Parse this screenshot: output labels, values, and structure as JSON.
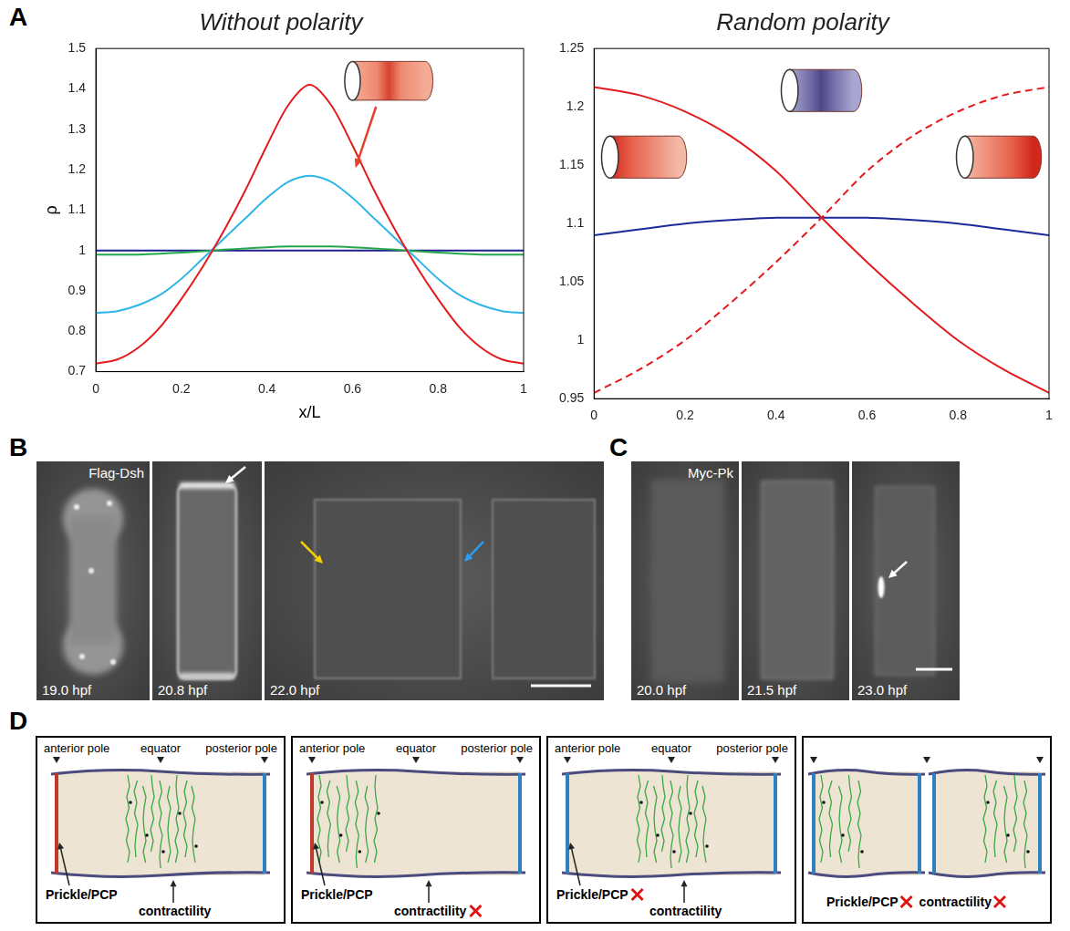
{
  "chart_data": [
    {
      "type": "line",
      "title": "Without polarity",
      "x_label": "x/L",
      "y_label": "ρ",
      "x": [
        0,
        0.05,
        0.1,
        0.15,
        0.2,
        0.25,
        0.3,
        0.35,
        0.4,
        0.45,
        0.5,
        0.55,
        0.6,
        0.65,
        0.7,
        0.75,
        0.8,
        0.85,
        0.9,
        0.95,
        1
      ],
      "series": [
        {
          "color": "#e41a1c",
          "line_style": "solid",
          "values": [
            0.72,
            0.73,
            0.76,
            0.81,
            0.88,
            0.96,
            1.05,
            1.15,
            1.26,
            1.36,
            1.41,
            1.36,
            1.26,
            1.15,
            1.05,
            0.96,
            0.88,
            0.81,
            0.76,
            0.73,
            0.72
          ]
        },
        {
          "color": "#2fb5e8",
          "line_style": "solid",
          "values": [
            0.845,
            0.85,
            0.865,
            0.89,
            0.93,
            0.98,
            1.03,
            1.08,
            1.13,
            1.17,
            1.185,
            1.17,
            1.13,
            1.08,
            1.03,
            0.98,
            0.93,
            0.89,
            0.865,
            0.85,
            0.845
          ]
        },
        {
          "color": "#22a84a",
          "line_style": "solid",
          "values": [
            0.99,
            0.99,
            0.99,
            0.992,
            0.995,
            0.998,
            1.002,
            1.005,
            1.008,
            1.01,
            1.01,
            1.01,
            1.008,
            1.005,
            1.002,
            0.998,
            0.995,
            0.992,
            0.99,
            0.99,
            0.99
          ]
        },
        {
          "color": "#1f1f8f",
          "line_style": "solid",
          "values": [
            1,
            1,
            1,
            1,
            1,
            1,
            1,
            1,
            1,
            1,
            1,
            1,
            1,
            1,
            1,
            1,
            1,
            1,
            1,
            1,
            1
          ]
        }
      ],
      "xlim": [
        0,
        1
      ],
      "xticks": [
        0,
        0.2,
        0.4,
        0.6,
        0.8,
        1
      ],
      "ylim": [
        0.7,
        1.5
      ],
      "yticks": [
        0.7,
        0.8,
        0.9,
        1,
        1.1,
        1.2,
        1.3,
        1.4,
        1.5
      ],
      "grid": false
    },
    {
      "type": "line",
      "title": "Random polarity",
      "x": [
        0,
        0.1,
        0.2,
        0.3,
        0.4,
        0.5,
        0.6,
        0.7,
        0.8,
        0.9,
        1
      ],
      "series": [
        {
          "color": "#e41a1c",
          "line_style": "solid",
          "values": [
            1.217,
            1.21,
            1.196,
            1.175,
            1.145,
            1.105,
            1.067,
            1.032,
            1.0,
            0.975,
            0.955
          ]
        },
        {
          "color": "#e41a1c",
          "line_style": "dashed",
          "values": [
            0.955,
            0.975,
            1.0,
            1.032,
            1.067,
            1.105,
            1.145,
            1.175,
            1.196,
            1.21,
            1.217
          ]
        },
        {
          "color": "#1a2a9a",
          "line_style": "solid",
          "values": [
            1.09,
            1.095,
            1.1,
            1.103,
            1.105,
            1.105,
            1.105,
            1.103,
            1.1,
            1.095,
            1.09
          ]
        }
      ],
      "xlim": [
        0,
        1
      ],
      "xticks": [
        0,
        0.2,
        0.4,
        0.6,
        0.8,
        1
      ],
      "ylim": [
        0.95,
        1.25
      ],
      "yticks": [
        0.95,
        1,
        1.05,
        1.1,
        1.15,
        1.2,
        1.25
      ],
      "grid": false
    }
  ],
  "panel_A": {
    "label": "A"
  },
  "panel_B": {
    "label": "B",
    "stain": "Flag-Dsh",
    "times": [
      "19.0 hpf",
      "20.8 hpf",
      "22.0 hpf"
    ]
  },
  "panel_C": {
    "label": "C",
    "stain": "Myc-Pk",
    "times": [
      "20.0 hpf",
      "21.5 hpf",
      "23.0 hpf"
    ]
  },
  "panel_D": {
    "label": "D",
    "boxes": [
      {
        "top_labels": [
          "anterior pole",
          "equator",
          "posterior pole"
        ],
        "bottom_labels": [
          {
            "text": "Prickle/PCP",
            "crossed": false
          },
          {
            "text": "contractility",
            "crossed": false
          }
        ]
      },
      {
        "top_labels": [
          "anterior pole",
          "equator",
          "posterior pole"
        ],
        "bottom_labels": [
          {
            "text": "Prickle/PCP",
            "crossed": false
          },
          {
            "text": "contractility",
            "crossed": true
          }
        ]
      },
      {
        "top_labels": [
          "anterior pole",
          "equator",
          "posterior pole"
        ],
        "bottom_labels": [
          {
            "text": "Prickle/PCP",
            "crossed": true
          },
          {
            "text": "contractility",
            "crossed": false
          }
        ]
      },
      {
        "bottom_labels": [
          {
            "text": "Prickle/PCP",
            "crossed": true
          },
          {
            "text": "contractility",
            "crossed": true
          }
        ]
      }
    ]
  }
}
